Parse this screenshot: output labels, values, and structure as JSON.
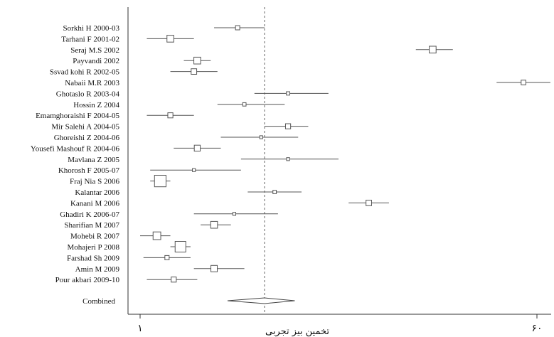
{
  "chart_data": {
    "type": "forest",
    "xlabel": "تخمین بیز تجربی",
    "xlim": [
      1,
      60
    ],
    "x_ticks": [
      {
        "value": 1,
        "label": "۱"
      },
      {
        "value": 60,
        "label": "۶۰"
      }
    ],
    "reference_line": 19.5,
    "studies": [
      {
        "label": "Sorkhi H 2000-03",
        "estimate": 15.5,
        "lower": 12,
        "upper": 19.5,
        "weight": 0.5
      },
      {
        "label": "Tarhani F 2001-02",
        "estimate": 5.5,
        "lower": 2,
        "upper": 9,
        "weight": 1.1
      },
      {
        "label": "Seraj M.S 2002",
        "estimate": 44.5,
        "lower": 42,
        "upper": 47.5,
        "weight": 1.1
      },
      {
        "label": "Payvandi 2002",
        "estimate": 9.5,
        "lower": 7.5,
        "upper": 11.5,
        "weight": 1.1
      },
      {
        "label": "Ssvad kohi R 2002-05",
        "estimate": 9,
        "lower": 5.5,
        "upper": 12.5,
        "weight": 0.8
      },
      {
        "label": "Nabaii M.R 2003",
        "estimate": 58,
        "lower": 54,
        "upper": 62,
        "weight": 0.6
      },
      {
        "label": "Ghotaslo R 2003-04",
        "estimate": 23,
        "lower": 18,
        "upper": 29,
        "weight": 0.3
      },
      {
        "label": "Hossin Z 2004",
        "estimate": 16.5,
        "lower": 12.5,
        "upper": 22.5,
        "weight": 0.3
      },
      {
        "label": "Emamghoraishi F 2004-05",
        "estimate": 5.5,
        "lower": 2,
        "upper": 9,
        "weight": 0.7
      },
      {
        "label": "Mir Salehi A 2004-05",
        "estimate": 23,
        "lower": 19.5,
        "upper": 26,
        "weight": 0.7
      },
      {
        "label": "Ghoreishi Z 2004-06",
        "estimate": 19,
        "lower": 13,
        "upper": 24.5,
        "weight": 0.2
      },
      {
        "label": "Yousefi Mashouf R 2004-06",
        "estimate": 9.5,
        "lower": 6,
        "upper": 13,
        "weight": 0.9
      },
      {
        "label": "Mavlana Z 2005",
        "estimate": 23,
        "lower": 16,
        "upper": 30.5,
        "weight": 0.2
      },
      {
        "label": "Khorosh F 2005-07",
        "estimate": 9,
        "lower": 2.5,
        "upper": 16,
        "weight": 0.2
      },
      {
        "label": "Fraj Nia S 2006",
        "estimate": 4,
        "lower": 2.5,
        "upper": 5.5,
        "weight": 2.2
      },
      {
        "label": "Kalantar 2006",
        "estimate": 21,
        "lower": 17,
        "upper": 25,
        "weight": 0.3
      },
      {
        "label": "Kanani M 2006",
        "estimate": 35,
        "lower": 32,
        "upper": 38,
        "weight": 0.8
      },
      {
        "label": "Ghadiri K 2006-07",
        "estimate": 15,
        "lower": 9,
        "upper": 21.5,
        "weight": 0.2
      },
      {
        "label": "Sharifian M 2007",
        "estimate": 12,
        "lower": 10,
        "upper": 14.5,
        "weight": 1.1
      },
      {
        "label": "Mohebi R 2007",
        "estimate": 3.5,
        "lower": 1,
        "upper": 5.5,
        "weight": 1.3
      },
      {
        "label": "Mohajeri P 2008",
        "estimate": 7,
        "lower": 5.5,
        "upper": 8.5,
        "weight": 2
      },
      {
        "label": "Farshad Sh 2009",
        "estimate": 5,
        "lower": 1.5,
        "upper": 8.5,
        "weight": 0.5
      },
      {
        "label": "Amin M 2009",
        "estimate": 12,
        "lower": 9,
        "upper": 16.5,
        "weight": 1
      },
      {
        "label": "Pour akbari 2009-10",
        "estimate": 6,
        "lower": 2,
        "upper": 9.5,
        "weight": 0.7
      }
    ],
    "combined": {
      "label": "Combined",
      "estimate": 19.5,
      "lower": 14,
      "upper": 24
    }
  }
}
